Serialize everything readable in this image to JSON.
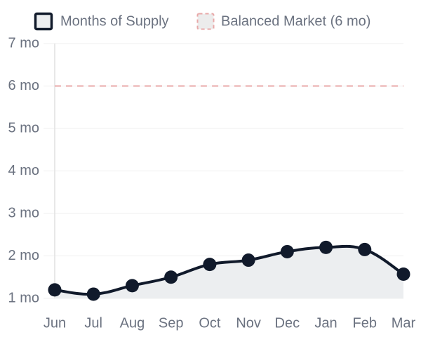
{
  "chart_data": {
    "type": "line",
    "categories": [
      "Jun",
      "Jul",
      "Aug",
      "Sep",
      "Oct",
      "Nov",
      "Dec",
      "Jan",
      "Feb",
      "Mar"
    ],
    "series": [
      {
        "name": "Months of Supply",
        "color": "#111a2b",
        "fill": "#eceef0",
        "values": [
          1.2,
          1.1,
          1.3,
          1.5,
          1.8,
          1.9,
          2.1,
          2.2,
          2.15,
          1.57
        ]
      },
      {
        "name": "Balanced Market (6 mo)",
        "color": "#e8a8a8",
        "dashed": true,
        "values": [
          6,
          6,
          6,
          6,
          6,
          6,
          6,
          6,
          6,
          6
        ]
      }
    ],
    "ylim": [
      1,
      7
    ],
    "yticks": [
      {
        "value": 1,
        "label": "1 mo"
      },
      {
        "value": 2,
        "label": "2 mo"
      },
      {
        "value": 3,
        "label": "3 mo"
      },
      {
        "value": 4,
        "label": "4 mo"
      },
      {
        "value": 5,
        "label": "5 mo"
      },
      {
        "value": 6,
        "label": "6 mo"
      },
      {
        "value": 7,
        "label": "7 mo"
      }
    ],
    "grid": true
  }
}
